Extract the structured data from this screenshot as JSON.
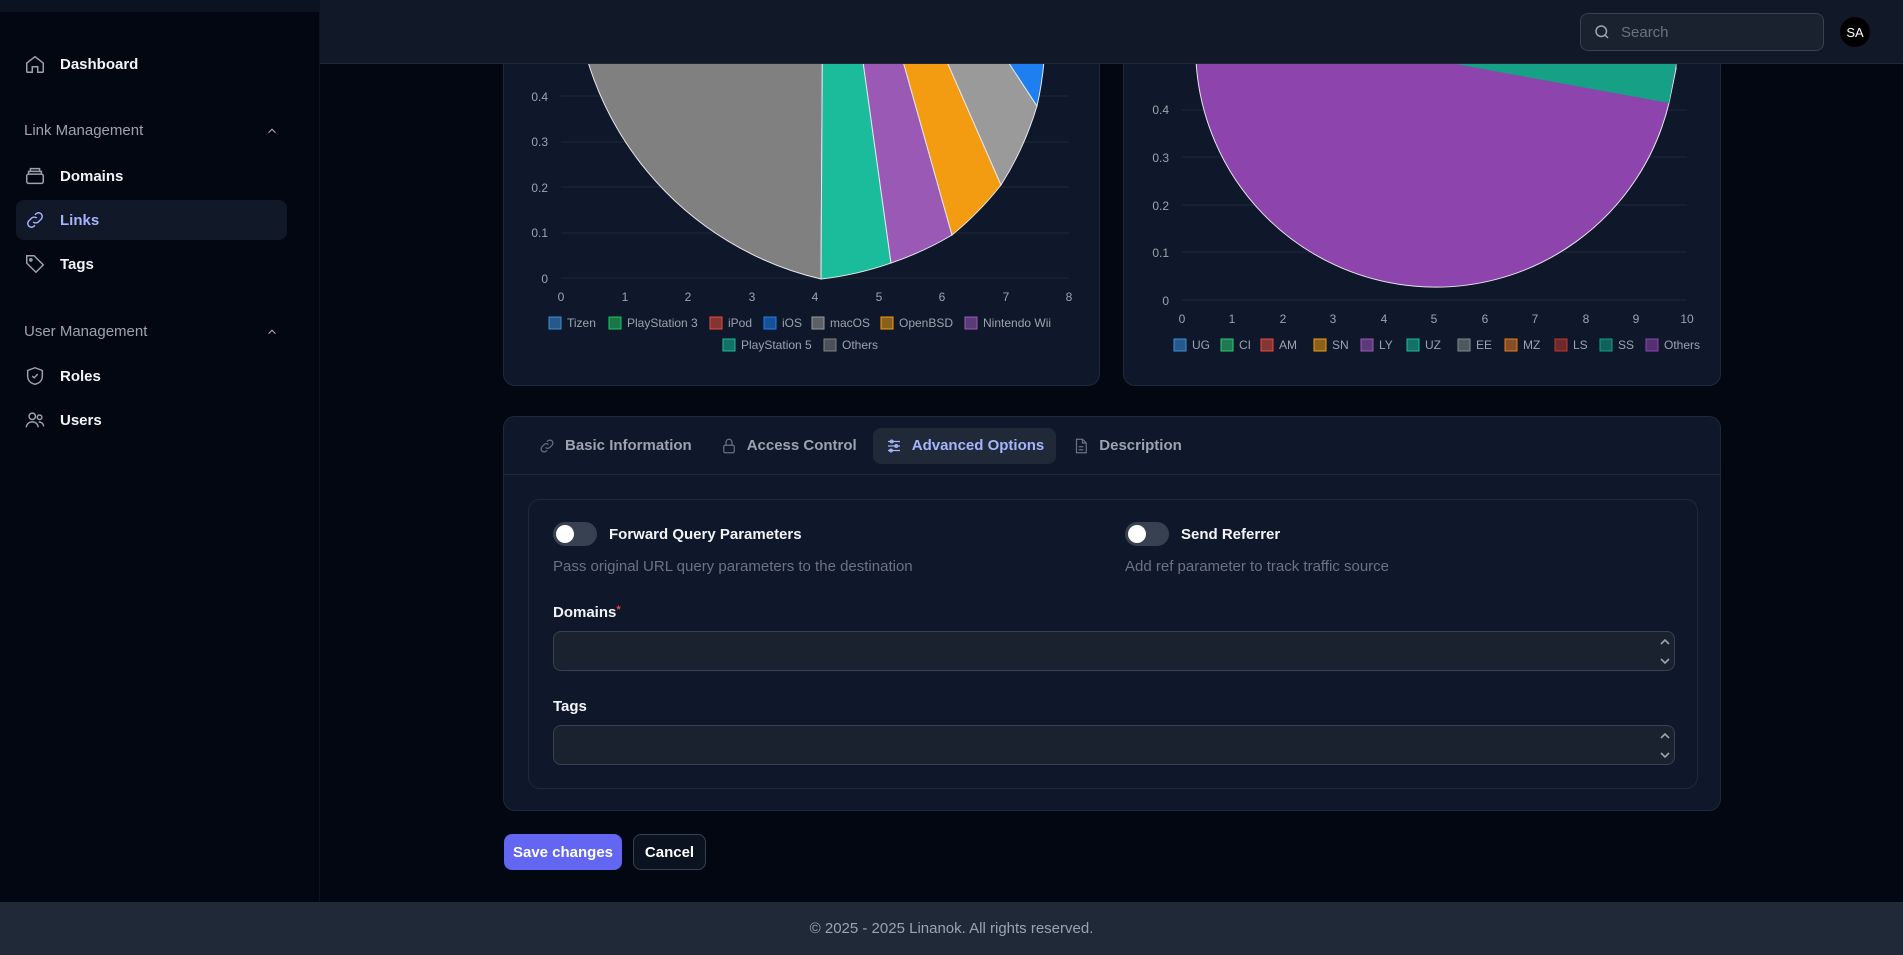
{
  "sidebar": {
    "dashboard": "Dashboard",
    "groups": [
      {
        "label": "Link Management",
        "items": [
          "Domains",
          "Links",
          "Tags"
        ]
      },
      {
        "label": "User Management",
        "items": [
          "Roles",
          "Users"
        ]
      }
    ],
    "active": "Links"
  },
  "topbar": {
    "search_placeholder": "Search",
    "avatar_initials": "SA"
  },
  "charts": {
    "left": {
      "legend": [
        "Tizen",
        "PlayStation 3",
        "iPod",
        "iOS",
        "macOS",
        "OpenBSD",
        "Nintendo Wii",
        "PlayStation 5",
        "Others"
      ],
      "colors": [
        "#3b8fd9",
        "#22c55e",
        "#e74c3c",
        "#1e7ff0",
        "#9a9a9a",
        "#f39c12",
        "#9b59b6",
        "#1abc9c",
        "#808080"
      ]
    },
    "right": {
      "legend": [
        "UG",
        "CI",
        "AM",
        "SN",
        "LY",
        "UZ",
        "EE",
        "MZ",
        "LS",
        "SS",
        "Others"
      ],
      "colors": [
        "#3b8fd9",
        "#2ecc71",
        "#e74c3c",
        "#f39c12",
        "#9b59b6",
        "#1abc9c",
        "#7f8c8d",
        "#e67e22",
        "#c0392b",
        "#16a085",
        "#8e44ad"
      ]
    }
  },
  "chart_data": [
    {
      "type": "pie",
      "title": "",
      "x_ticks": [
        "0",
        "1",
        "2",
        "3",
        "4",
        "5",
        "6",
        "7",
        "8"
      ],
      "y_ticks": [
        "0",
        "0.1",
        "0.2",
        "0.3",
        "0.4"
      ],
      "series": [
        {
          "name": "iOS"
        },
        {
          "name": "macOS"
        },
        {
          "name": "OpenBSD"
        },
        {
          "name": "Nintendo Wii"
        },
        {
          "name": "PlayStation 5"
        },
        {
          "name": "Others"
        }
      ],
      "legend_position": "bottom"
    },
    {
      "type": "pie",
      "title": "",
      "x_ticks": [
        "0",
        "1",
        "2",
        "3",
        "4",
        "5",
        "6",
        "7",
        "8",
        "9",
        "10"
      ],
      "y_ticks": [
        "0",
        "0.1",
        "0.2",
        "0.3",
        "0.4"
      ],
      "series": [
        {
          "name": "SS"
        },
        {
          "name": "Others"
        }
      ],
      "legend_position": "bottom"
    }
  ],
  "tabs": [
    "Basic Information",
    "Access Control",
    "Advanced Options",
    "Description"
  ],
  "active_tab": "Advanced Options",
  "options": {
    "forward_query": {
      "label": "Forward Query Parameters",
      "hint": "Pass original URL query parameters to the destination"
    },
    "send_referrer": {
      "label": "Send Referrer",
      "hint": "Add ref parameter to track traffic source"
    }
  },
  "fields": {
    "domains_label": "Domains",
    "required_mark": "*",
    "tags_label": "Tags"
  },
  "actions": {
    "save": "Save changes",
    "cancel": "Cancel"
  },
  "footer": "© 2025 - 2025 Linanok. All rights reserved."
}
